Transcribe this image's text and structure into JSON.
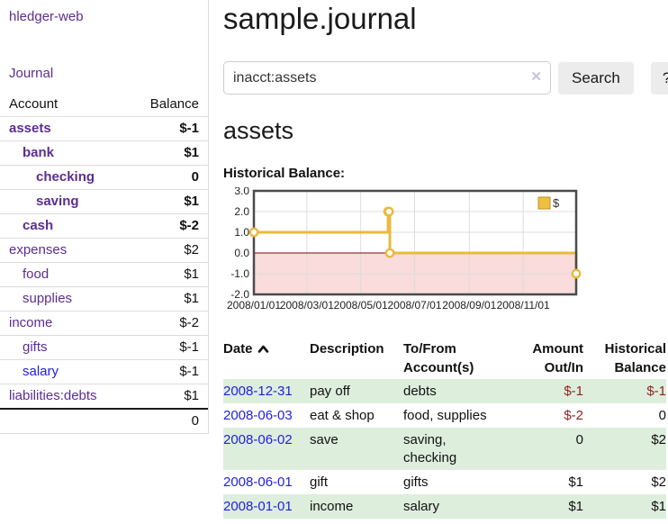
{
  "app": {
    "brand": "hledger-web",
    "title": "sample.journal"
  },
  "sidebar": {
    "journal_link": "Journal",
    "account_header": "Account",
    "balance_header": "Balance",
    "accounts": [
      {
        "name": "assets",
        "indent": 0,
        "bold": true,
        "link_color": "purple",
        "balance": "$-1",
        "balance_color": "strong-neg"
      },
      {
        "name": "bank",
        "indent": 1,
        "bold": true,
        "link_color": "purple",
        "balance": "$1",
        "balance_color": "normal"
      },
      {
        "name": "checking",
        "indent": 2,
        "bold": true,
        "link_color": "purple",
        "balance": "0",
        "balance_color": "normal"
      },
      {
        "name": "saving",
        "indent": 2,
        "bold": true,
        "link_color": "purple",
        "balance": "$1",
        "balance_color": "normal"
      },
      {
        "name": "cash",
        "indent": 1,
        "bold": true,
        "link_color": "purple",
        "balance": "$-2",
        "balance_color": "strong-neg"
      },
      {
        "name": "expenses",
        "indent": 0,
        "bold": false,
        "link_color": "purple",
        "balance": "$2",
        "balance_color": "normal"
      },
      {
        "name": "food",
        "indent": 1,
        "bold": false,
        "link_color": "purple",
        "balance": "$1",
        "balance_color": "normal"
      },
      {
        "name": "supplies",
        "indent": 1,
        "bold": false,
        "link_color": "purple",
        "balance": "$1",
        "balance_color": "normal"
      },
      {
        "name": "income",
        "indent": 0,
        "bold": false,
        "link_color": "purple",
        "balance": "$-2",
        "balance_color": "muted-neg"
      },
      {
        "name": "gifts",
        "indent": 1,
        "bold": false,
        "link_color": "purple",
        "balance": "$-1",
        "balance_color": "muted-neg"
      },
      {
        "name": "salary",
        "indent": 1,
        "bold": false,
        "link_color": "blue",
        "balance": "$-1",
        "balance_color": "muted-neg"
      },
      {
        "name": "liabilities:debts",
        "indent": 0,
        "bold": false,
        "link_color": "purple",
        "balance": "$1",
        "balance_color": "normal"
      }
    ],
    "total": "0"
  },
  "search": {
    "value": "inacct:assets",
    "clear_icon": "✕",
    "button_label": "Search",
    "help_label": "?"
  },
  "account_page": {
    "heading": "assets",
    "chart_label": "Historical Balance:"
  },
  "chart_data": {
    "type": "line",
    "step": "after",
    "title": "Historical Balance:",
    "series": [
      {
        "name": "$",
        "color": "#e8ba3f",
        "points": [
          [
            "2008-01-01",
            1
          ],
          [
            "2008-06-01",
            2
          ],
          [
            "2008-06-02",
            2
          ],
          [
            "2008-06-03",
            0
          ],
          [
            "2008-12-31",
            -1
          ]
        ]
      }
    ],
    "x_range": [
      "2008-01-01",
      "2008-12-31"
    ],
    "ylim": [
      -2,
      3
    ],
    "y_ticks": [
      3.0,
      2.0,
      1.0,
      0.0,
      -1.0,
      -2.0
    ],
    "x_ticks": [
      "2008/01/01",
      "2008/03/01",
      "2008/05/01",
      "2008/07/01",
      "2008/09/01",
      "2008/11/01"
    ],
    "grid": true,
    "legend": {
      "label": "$",
      "position": "top-right",
      "swatch_fill": "#eec041",
      "swatch_stroke": "#c08f1f"
    },
    "negative_region_color": "#fadcdc",
    "zero_line_color": "#8b0000",
    "border_color": "#4a4a4a",
    "grid_color": "#dddddd"
  },
  "register": {
    "headers": {
      "date": "Date",
      "description": "Description",
      "accounts_line1": "To/From",
      "accounts_line2": "Account(s)",
      "amount_line1": "Amount",
      "amount_line2": "Out/In",
      "balance_line1": "Historical",
      "balance_line2": "Balance"
    },
    "rows": [
      {
        "date": "2008-12-31",
        "description": "pay off",
        "accounts": [
          "debts"
        ],
        "amount": "$-1",
        "balance": "$-1"
      },
      {
        "date": "2008-06-03",
        "description": "eat & shop",
        "accounts": [
          "food, supplies"
        ],
        "amount": "$-2",
        "balance": "0"
      },
      {
        "date": "2008-06-02",
        "description": "save",
        "accounts": [
          "saving,",
          "checking"
        ],
        "amount": "0",
        "balance": "$2"
      },
      {
        "date": "2008-06-01",
        "description": "gift",
        "accounts": [
          "gifts"
        ],
        "amount": "$1",
        "balance": "$2"
      },
      {
        "date": "2008-01-01",
        "description": "income",
        "accounts": [
          "salary"
        ],
        "amount": "$1",
        "balance": "$1"
      }
    ]
  },
  "colors": {
    "link_purple": "#5c2d91",
    "link_blue": "#2222dd",
    "negative_strong": "#8b1713",
    "negative_muted": "#c17d7e",
    "negative_table": "#941f1f",
    "row_stripe_green": "#ddeedd"
  }
}
